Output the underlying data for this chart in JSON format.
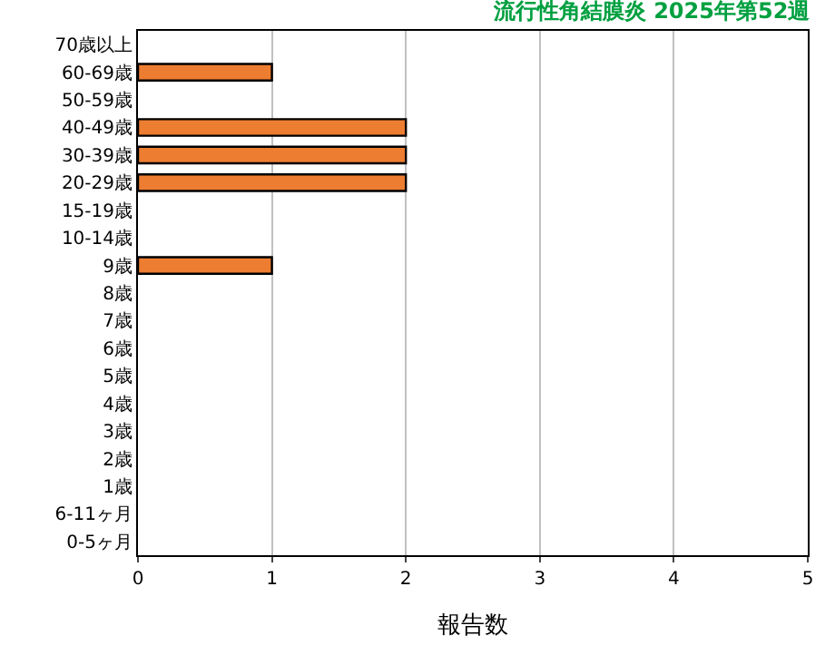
{
  "chart_data": {
    "type": "bar",
    "orientation": "horizontal",
    "title": "流行性角結膜炎 2025年第52週",
    "xlabel": "報告数",
    "categories": [
      "70歳以上",
      "60-69歳",
      "50-59歳",
      "40-49歳",
      "30-39歳",
      "20-29歳",
      "15-19歳",
      "10-14歳",
      "9歳",
      "8歳",
      "7歳",
      "6歳",
      "5歳",
      "4歳",
      "3歳",
      "2歳",
      "1歳",
      "6-11ヶ月",
      "0-5ヶ月"
    ],
    "values": [
      0,
      1,
      0,
      2,
      2,
      2,
      0,
      0,
      1,
      0,
      0,
      0,
      0,
      0,
      0,
      0,
      0,
      0,
      0
    ],
    "color": "#ed7d31",
    "xlim": [
      0,
      5
    ],
    "xticks": [
      0,
      1,
      2,
      3,
      4,
      5
    ],
    "grid": "x"
  }
}
